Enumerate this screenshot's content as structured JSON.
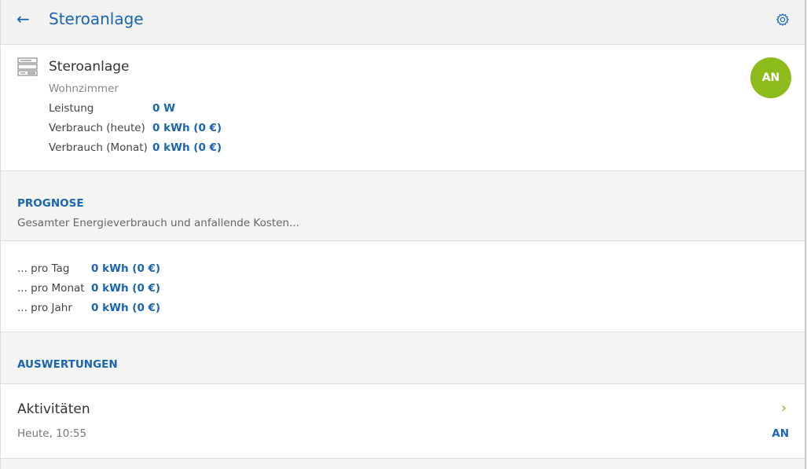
{
  "header": {
    "title": "Steroanlage",
    "back_icon": "arrow-left-icon",
    "settings_icon": "gear-icon"
  },
  "device": {
    "name": "Steroanlage",
    "room": "Wohnzimmer",
    "status": "AN",
    "status_color": "#8cbb1a",
    "rows": [
      {
        "label": "Leistung",
        "value": "0 W"
      },
      {
        "label": "Verbrauch (heute)",
        "value": "0 kWh (0 €)"
      },
      {
        "label": "Verbrauch (Monat)",
        "value": "0 kWh (0 €)"
      }
    ]
  },
  "prognose": {
    "heading": "PROGNOSE",
    "subtitle": "Gesamter Energieverbrauch und anfallende Kosten...",
    "rows": [
      {
        "label": "... pro Tag",
        "value": "0 kWh (0 €)"
      },
      {
        "label": "... pro Monat",
        "value": "0 kWh (0 €)"
      },
      {
        "label": "... pro Jahr",
        "value": "0 kWh (0 €)"
      }
    ]
  },
  "auswertungen": {
    "heading": "AUSWERTUNGEN",
    "item": {
      "title": "Aktivitäten",
      "time": "Heute, 10:55",
      "status": "AN"
    }
  },
  "colors": {
    "accent": "#1a64b4",
    "green": "#8cbb1a"
  }
}
